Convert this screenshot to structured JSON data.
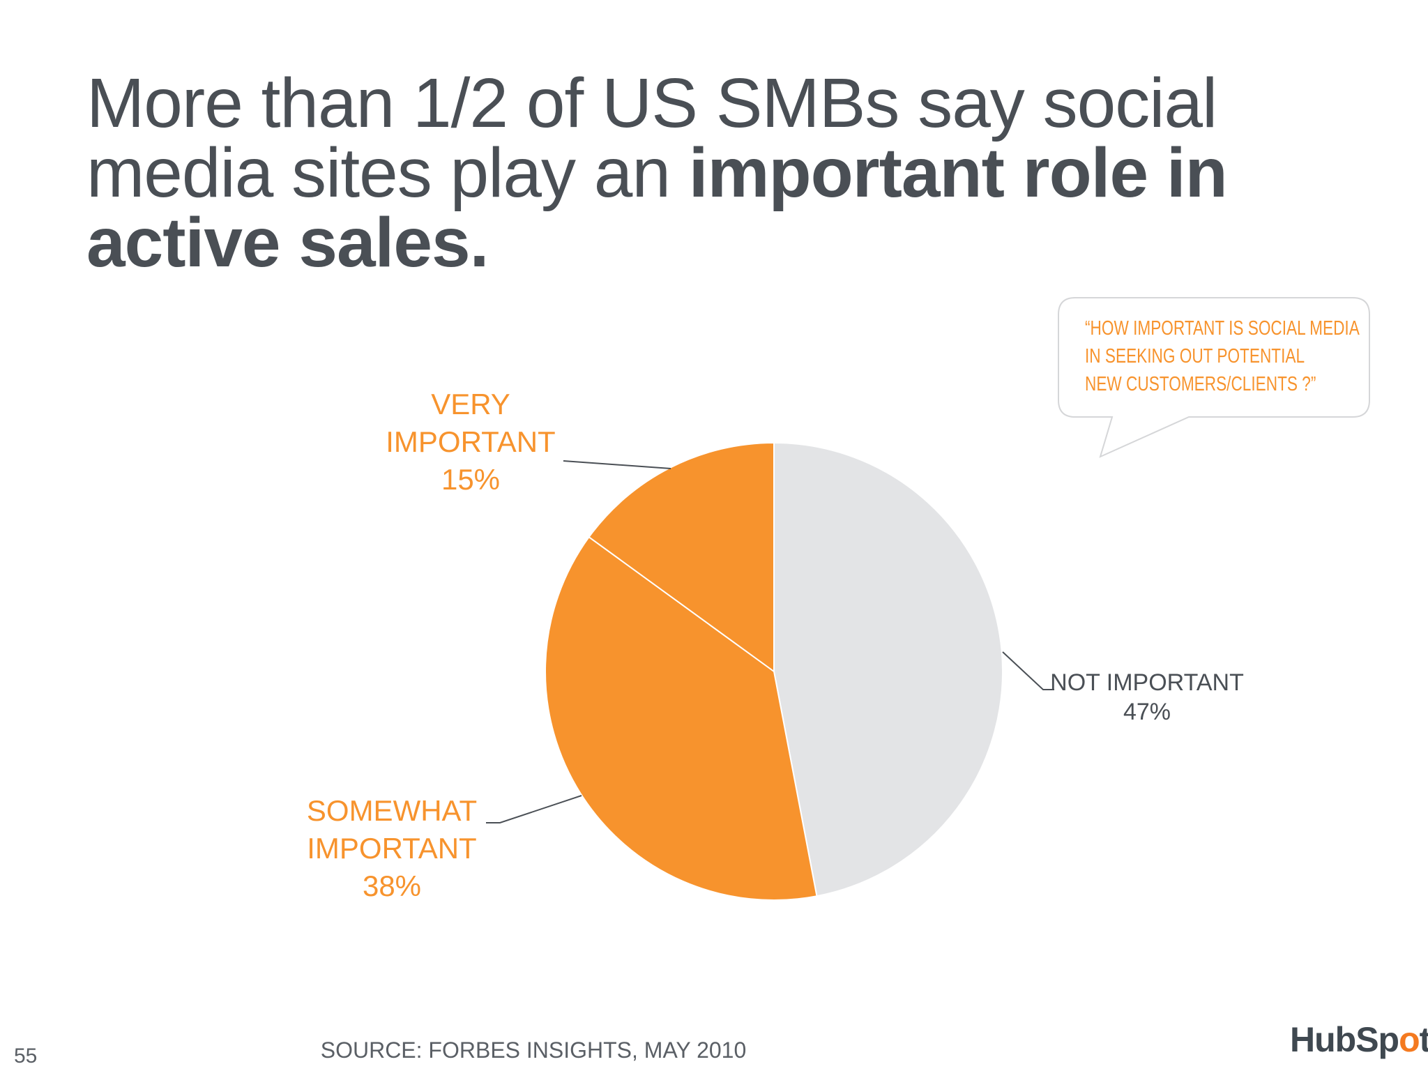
{
  "title": {
    "plain": "More than 1/2 of US SMBs say social media sites play an ",
    "bold": "important role in active sales."
  },
  "chart_data": {
    "type": "pie",
    "title": "",
    "slices": [
      {
        "label": "NOT IMPORTANT",
        "value": 47,
        "display": "47%",
        "color": "#e3e4e6"
      },
      {
        "label": "SOMEWHAT IMPORTANT",
        "value": 38,
        "display": "38%",
        "color": "#f7932d"
      },
      {
        "label": "VERY IMPORTANT",
        "value": 15,
        "display": "15%",
        "color": "#f7932d"
      }
    ],
    "start": "12 o'clock",
    "direction": "clockwise"
  },
  "labels": {
    "very": [
      "VERY",
      "IMPORTANT",
      "15%"
    ],
    "somewhat": [
      "SOMEWHAT",
      "IMPORTANT",
      "38%"
    ],
    "not": [
      "NOT IMPORTANT",
      "47%"
    ]
  },
  "callout": {
    "lines": [
      "“HOW IMPORTANT IS SOCIAL MEDIA",
      "IN SEEKING OUT POTENTIAL",
      "NEW CUSTOMERS/CLIENTS ?”"
    ]
  },
  "footer": {
    "source": "SOURCE: FORBES INSIGHTS, MAY 2010",
    "page_number": "55",
    "logo_text_1": "HubSp",
    "logo_text_2": "o",
    "logo_text_3": "t"
  },
  "colors": {
    "accent": "#f7932d",
    "text": "#4a4f55",
    "neutral_slice": "#e3e4e6"
  }
}
